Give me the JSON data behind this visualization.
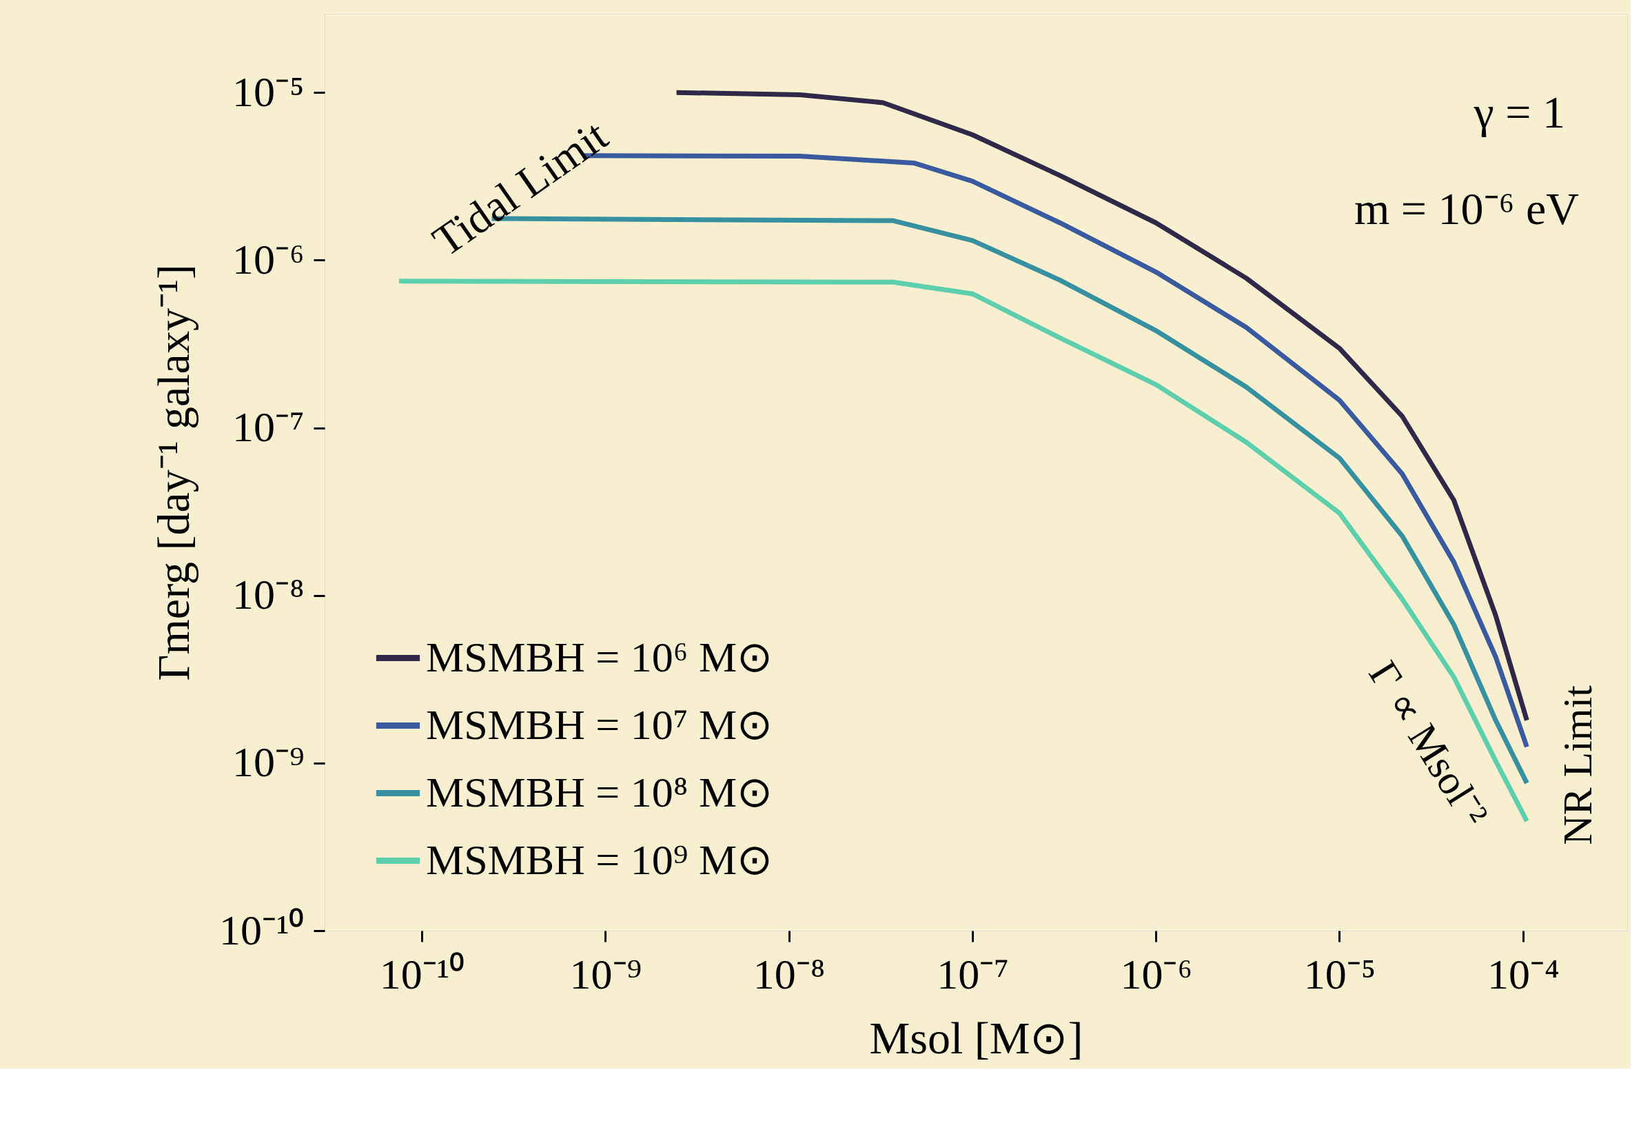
{
  "chart_data": {
    "type": "line",
    "xlabel": "Msol [M⊙]",
    "ylabel": "Γmerg [day⁻¹ galaxy⁻¹]",
    "log": "xy",
    "grid": false,
    "legend": "bottom left",
    "marker": "none",
    "line_style": "solid",
    "xlim": [
      2.95e-11,
      0.00037
    ],
    "ylim": [
      1e-10,
      2.95e-05
    ],
    "xticks": [
      {
        "value": 1e-10,
        "label": "10⁻¹⁰"
      },
      {
        "value": 1e-09,
        "label": "10⁻⁹"
      },
      {
        "value": 1e-08,
        "label": "10⁻⁸"
      },
      {
        "value": 1e-07,
        "label": "10⁻⁷"
      },
      {
        "value": 1e-06,
        "label": "10⁻⁶"
      },
      {
        "value": 1e-05,
        "label": "10⁻⁵"
      },
      {
        "value": 0.0001,
        "label": "10⁻⁴"
      }
    ],
    "yticks": [
      {
        "value": 1e-10,
        "label": "10⁻¹⁰"
      },
      {
        "value": 1e-09,
        "label": "10⁻⁹"
      },
      {
        "value": 1e-08,
        "label": "10⁻⁸"
      },
      {
        "value": 1e-07,
        "label": "10⁻⁷"
      },
      {
        "value": 1e-06,
        "label": "10⁻⁶"
      },
      {
        "value": 1e-05,
        "label": "10⁻⁵"
      }
    ],
    "series": [
      {
        "name": "MSMBH = 10⁶ M⊙",
        "color": "#2f2848",
        "x": [
          2.44e-09,
          1.15e-08,
          3.26e-08,
          1e-07,
          3e-07,
          1e-06,
          3.11e-06,
          1e-05,
          2.2e-05,
          4.2e-05,
          7.1e-05,
          0.000105
        ],
        "values": [
          1e-05,
          9.7e-06,
          8.7e-06,
          5.6e-06,
          3.2e-06,
          1.67e-06,
          7.8e-07,
          2.98e-07,
          1.17e-07,
          3.7e-08,
          7.6e-09,
          1.8e-09
        ]
      },
      {
        "name": "MSMBH = 10⁷ M⊙",
        "color": "#3a5a9f",
        "x": [
          7.5e-10,
          1.15e-08,
          4.8e-08,
          1e-07,
          3e-07,
          1e-06,
          3.11e-06,
          1e-05,
          2.2e-05,
          4.2e-05,
          7.1e-05,
          0.000105
        ],
        "values": [
          4.2e-06,
          4.17e-06,
          3.8e-06,
          2.96e-06,
          1.67e-06,
          8.5e-07,
          3.97e-07,
          1.46e-07,
          5.3e-08,
          1.58e-08,
          4.3e-09,
          1.25e-09
        ]
      },
      {
        "name": "MSMBH = 10⁸ M⊙",
        "color": "#3690a0",
        "x": [
          2.4e-10,
          3.7e-08,
          1e-07,
          3e-07,
          1e-06,
          3.11e-06,
          1e-05,
          2.2e-05,
          4.2e-05,
          7.1e-05,
          0.000105
        ],
        "values": [
          1.77e-06,
          1.72e-06,
          1.31e-06,
          7.6e-07,
          3.8e-07,
          1.75e-07,
          6.6e-08,
          2.26e-08,
          6.7e-09,
          1.8e-09,
          7.6e-10
        ]
      },
      {
        "name": "MSMBH = 10⁹ M⊙",
        "color": "#5dcfac",
        "x": [
          7.5e-11,
          3.7e-08,
          1e-07,
          3e-07,
          1e-06,
          3.11e-06,
          1e-05,
          2.2e-05,
          4.2e-05,
          7.1e-05,
          0.000105
        ],
        "values": [
          7.5e-07,
          7.4e-07,
          6.3e-07,
          3.44e-07,
          1.81e-07,
          8.2e-08,
          3.1e-08,
          9.5e-09,
          3.26e-09,
          1.03e-09,
          4.5e-10
        ]
      }
    ],
    "annotations": [
      "Tidal Limit",
      "γ = 1",
      "m = 10⁻⁶ eV",
      "Γ ∝ Msol⁻²",
      "NR Limit"
    ]
  }
}
